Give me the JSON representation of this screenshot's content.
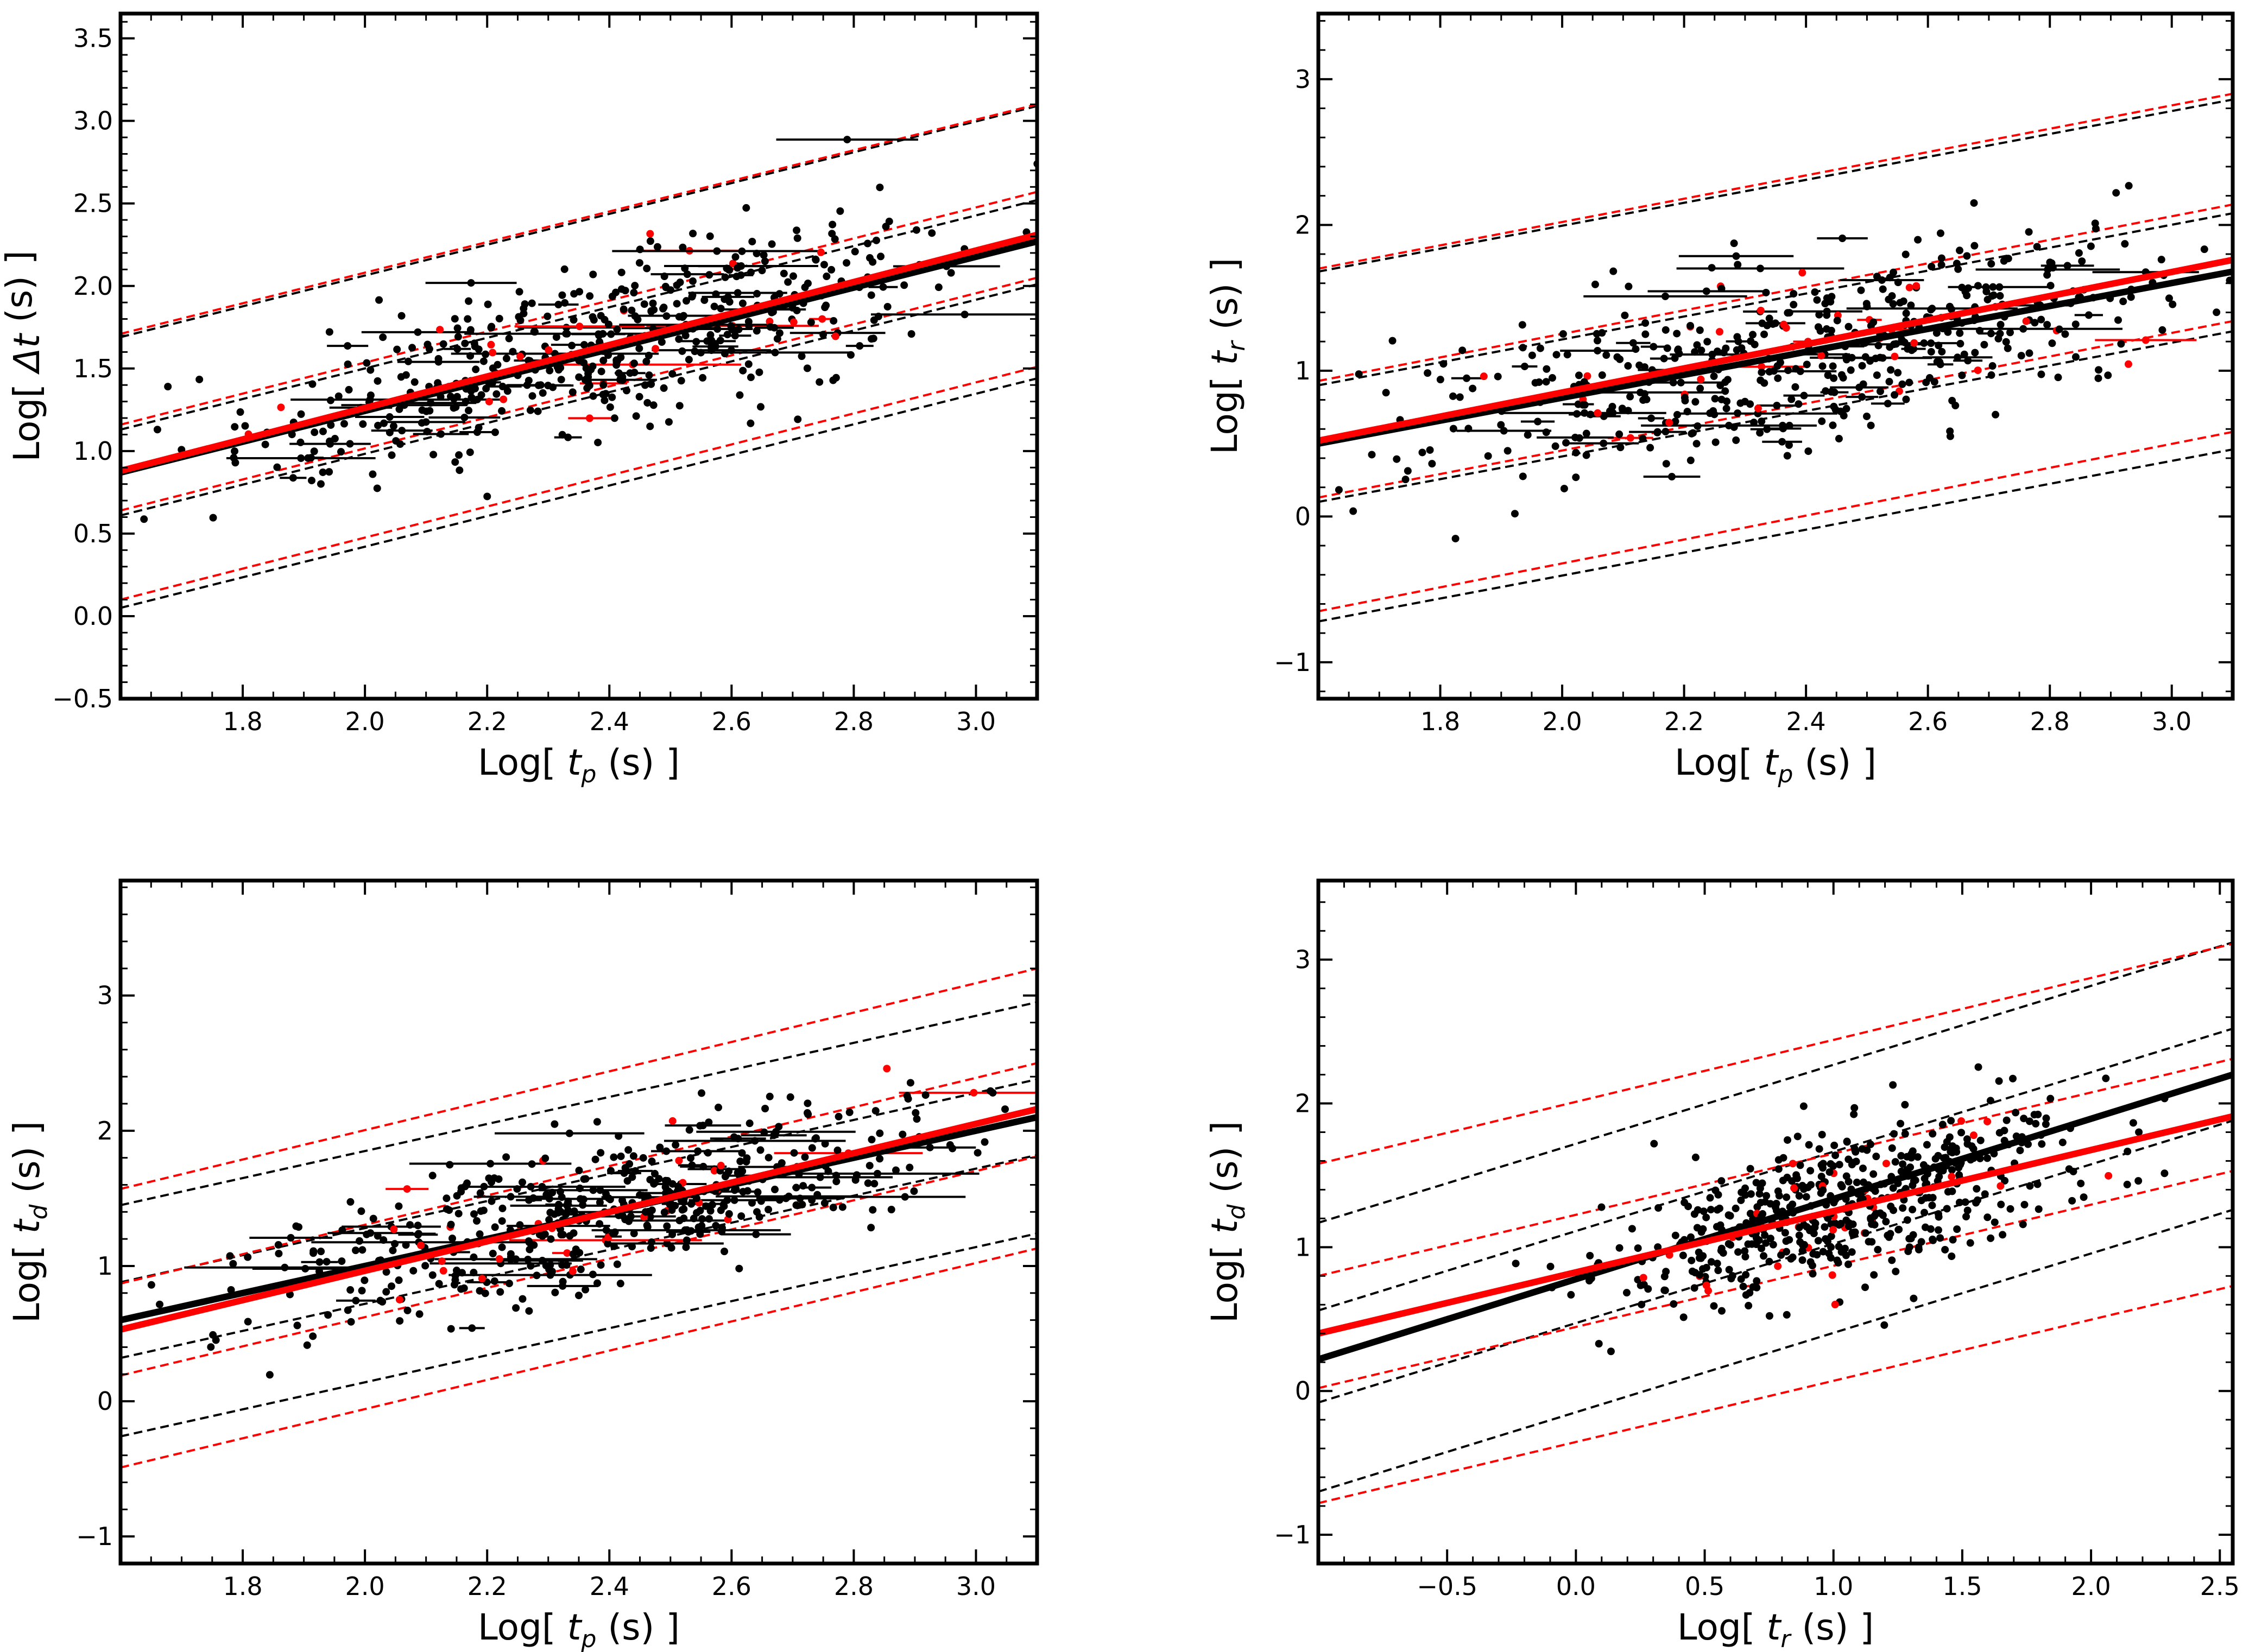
{
  "colors": {
    "black": "#000000",
    "red": "#ff0000",
    "background": "#ffffff"
  },
  "chart_data": [
    {
      "type": "scatter",
      "id": "p1",
      "xlabel": "Log[ t_p (s) ]",
      "ylabel": "Log[ Δt (s) ]",
      "x_prefix": "Log[ ",
      "x_var": "t",
      "x_sub": "p",
      "x_suffix": " (s) ]",
      "y_prefix": "Log[ ",
      "y_var": "Δt",
      "y_sub": "",
      "y_suffix": " (s) ]",
      "xlim": [
        1.6,
        3.1
      ],
      "ylim": [
        -0.5,
        3.65
      ],
      "xticks": [
        1.8,
        2.0,
        2.2,
        2.4,
        2.6,
        2.8,
        3.0
      ],
      "xtick_labels": [
        "1.8",
        "2.0",
        "2.2",
        "2.4",
        "2.6",
        "2.8",
        "3.0"
      ],
      "yticks": [
        -0.5,
        0.0,
        0.5,
        1.0,
        1.5,
        2.0,
        2.5,
        3.0,
        3.5
      ],
      "ytick_labels": [
        "−0.5",
        "0.0",
        "0.5",
        "1.0",
        "1.5",
        "2.0",
        "2.5",
        "3.0",
        "3.5"
      ],
      "xminor": 0.05,
      "yminor": 0.1,
      "scatter_center": [
        2.4,
        1.65
      ],
      "scatter_spread": [
        0.3,
        0.35
      ],
      "fit_slope": 0.94,
      "n_points": 520,
      "n_xerr": 70,
      "seed": 11,
      "lines": [
        {
          "color": "black",
          "width": 12,
          "dashed": false,
          "p1": [
            1.6,
            0.87
          ],
          "p2": [
            3.1,
            2.27
          ]
        },
        {
          "color": "red",
          "width": 12,
          "dashed": false,
          "p1": [
            1.6,
            0.88
          ],
          "p2": [
            3.1,
            2.31
          ]
        },
        {
          "color": "black",
          "width": 4,
          "dashed": true,
          "p1": [
            1.6,
            1.69
          ],
          "p2": [
            3.1,
            3.09
          ]
        },
        {
          "color": "red",
          "width": 4,
          "dashed": true,
          "p1": [
            1.6,
            1.71
          ],
          "p2": [
            3.1,
            3.1
          ]
        },
        {
          "color": "black",
          "width": 4,
          "dashed": true,
          "p1": [
            1.6,
            1.13
          ],
          "p2": [
            3.1,
            2.52
          ]
        },
        {
          "color": "red",
          "width": 4,
          "dashed": true,
          "p1": [
            1.6,
            1.16
          ],
          "p2": [
            3.1,
            2.57
          ]
        },
        {
          "color": "black",
          "width": 4,
          "dashed": true,
          "p1": [
            1.6,
            0.61
          ],
          "p2": [
            3.1,
            2.01
          ]
        },
        {
          "color": "red",
          "width": 4,
          "dashed": true,
          "p1": [
            1.6,
            0.64
          ],
          "p2": [
            3.1,
            2.05
          ]
        },
        {
          "color": "black",
          "width": 4,
          "dashed": true,
          "p1": [
            1.6,
            0.05
          ],
          "p2": [
            3.1,
            1.44
          ]
        },
        {
          "color": "red",
          "width": 4,
          "dashed": true,
          "p1": [
            1.6,
            0.1
          ],
          "p2": [
            3.1,
            1.51
          ]
        }
      ]
    },
    {
      "type": "scatter",
      "id": "p2",
      "xlabel": "Log[ t_p (s) ]",
      "ylabel": "Log[ t_r (s) ]",
      "x_prefix": "Log[ ",
      "x_var": "t",
      "x_sub": "p",
      "x_suffix": " (s) ]",
      "y_prefix": "Log[ ",
      "y_var": "t",
      "y_sub": "r",
      "y_suffix": " (s) ]",
      "xlim": [
        1.6,
        3.1
      ],
      "ylim": [
        -1.25,
        3.45
      ],
      "xticks": [
        1.8,
        2.0,
        2.2,
        2.4,
        2.6,
        2.8,
        3.0
      ],
      "xtick_labels": [
        "1.8",
        "2.0",
        "2.2",
        "2.4",
        "2.6",
        "2.8",
        "3.0"
      ],
      "yticks": [
        -1,
        0,
        1,
        2,
        3
      ],
      "ytick_labels": [
        "−1",
        "0",
        "1",
        "2",
        "3"
      ],
      "xminor": 0.05,
      "yminor": 0.2,
      "scatter_center": [
        2.4,
        1.1
      ],
      "scatter_spread": [
        0.3,
        0.45
      ],
      "fit_slope": 0.8,
      "n_points": 520,
      "n_xerr": 70,
      "seed": 23,
      "lines": [
        {
          "color": "black",
          "width": 12,
          "dashed": false,
          "p1": [
            1.6,
            0.5
          ],
          "p2": [
            3.1,
            1.68
          ]
        },
        {
          "color": "red",
          "width": 12,
          "dashed": false,
          "p1": [
            1.6,
            0.52
          ],
          "p2": [
            3.1,
            1.76
          ]
        },
        {
          "color": "black",
          "width": 4,
          "dashed": true,
          "p1": [
            1.6,
            1.68
          ],
          "p2": [
            3.1,
            2.86
          ]
        },
        {
          "color": "red",
          "width": 4,
          "dashed": true,
          "p1": [
            1.6,
            1.7
          ],
          "p2": [
            3.1,
            2.9
          ]
        },
        {
          "color": "black",
          "width": 4,
          "dashed": true,
          "p1": [
            1.6,
            0.9
          ],
          "p2": [
            3.1,
            2.08
          ]
        },
        {
          "color": "red",
          "width": 4,
          "dashed": true,
          "p1": [
            1.6,
            0.93
          ],
          "p2": [
            3.1,
            2.14
          ]
        },
        {
          "color": "black",
          "width": 4,
          "dashed": true,
          "p1": [
            1.6,
            0.1
          ],
          "p2": [
            3.1,
            1.27
          ]
        },
        {
          "color": "red",
          "width": 4,
          "dashed": true,
          "p1": [
            1.6,
            0.13
          ],
          "p2": [
            3.1,
            1.34
          ]
        },
        {
          "color": "black",
          "width": 4,
          "dashed": true,
          "p1": [
            1.6,
            -0.72
          ],
          "p2": [
            3.1,
            0.46
          ]
        },
        {
          "color": "red",
          "width": 4,
          "dashed": true,
          "p1": [
            1.6,
            -0.65
          ],
          "p2": [
            3.1,
            0.58
          ]
        }
      ]
    },
    {
      "type": "scatter",
      "id": "p3",
      "xlabel": "Log[ t_p (s) ]",
      "ylabel": "Log[ t_d (s) ]",
      "x_prefix": "Log[ ",
      "x_var": "t",
      "x_sub": "p",
      "x_suffix": " (s) ]",
      "y_prefix": "Log[ ",
      "y_var": "t",
      "y_sub": "d",
      "y_suffix": " (s) ]",
      "xlim": [
        1.6,
        3.1
      ],
      "ylim": [
        -1.2,
        3.85
      ],
      "xticks": [
        1.8,
        2.0,
        2.2,
        2.4,
        2.6,
        2.8,
        3.0
      ],
      "xtick_labels": [
        "1.8",
        "2.0",
        "2.2",
        "2.4",
        "2.6",
        "2.8",
        "3.0"
      ],
      "yticks": [
        -1,
        0,
        1,
        2,
        3
      ],
      "ytick_labels": [
        "−1",
        "0",
        "1",
        "2",
        "3"
      ],
      "xminor": 0.05,
      "yminor": 0.2,
      "scatter_center": [
        2.4,
        1.4
      ],
      "scatter_spread": [
        0.3,
        0.38
      ],
      "fit_slope": 1.0,
      "n_points": 520,
      "n_xerr": 70,
      "seed": 37,
      "lines": [
        {
          "color": "black",
          "width": 12,
          "dashed": false,
          "p1": [
            1.6,
            0.6
          ],
          "p2": [
            3.1,
            2.1
          ]
        },
        {
          "color": "red",
          "width": 12,
          "dashed": false,
          "p1": [
            1.6,
            0.53
          ],
          "p2": [
            3.1,
            2.16
          ]
        },
        {
          "color": "black",
          "width": 4,
          "dashed": true,
          "p1": [
            1.6,
            1.45
          ],
          "p2": [
            3.1,
            2.95
          ]
        },
        {
          "color": "red",
          "width": 4,
          "dashed": true,
          "p1": [
            1.6,
            1.57
          ],
          "p2": [
            3.1,
            3.2
          ]
        },
        {
          "color": "black",
          "width": 4,
          "dashed": true,
          "p1": [
            1.6,
            0.88
          ],
          "p2": [
            3.1,
            2.38
          ]
        },
        {
          "color": "red",
          "width": 4,
          "dashed": true,
          "p1": [
            1.6,
            0.87
          ],
          "p2": [
            3.1,
            2.5
          ]
        },
        {
          "color": "black",
          "width": 4,
          "dashed": true,
          "p1": [
            1.6,
            0.32
          ],
          "p2": [
            3.1,
            1.82
          ]
        },
        {
          "color": "red",
          "width": 4,
          "dashed": true,
          "p1": [
            1.6,
            0.19
          ],
          "p2": [
            3.1,
            1.81
          ]
        },
        {
          "color": "black",
          "width": 4,
          "dashed": true,
          "p1": [
            1.6,
            -0.26
          ],
          "p2": [
            3.1,
            1.24
          ]
        },
        {
          "color": "red",
          "width": 4,
          "dashed": true,
          "p1": [
            1.6,
            -0.49
          ],
          "p2": [
            3.1,
            1.13
          ]
        }
      ]
    },
    {
      "type": "scatter",
      "id": "p4",
      "xlabel": "Log[ t_r (s) ]",
      "ylabel": "Log[ t_d (s) ]",
      "x_prefix": "Log[ ",
      "x_var": "t",
      "x_sub": "r",
      "x_suffix": " (s) ]",
      "y_prefix": "Log[ ",
      "y_var": "t",
      "y_sub": "d",
      "y_suffix": " (s) ]",
      "xlim": [
        -1.0,
        2.55
      ],
      "ylim": [
        -1.2,
        3.55
      ],
      "xticks": [
        -0.5,
        0.0,
        0.5,
        1.0,
        1.5,
        2.0,
        2.5
      ],
      "xtick_labels": [
        "−0.5",
        "0.0",
        "0.5",
        "1.0",
        "1.5",
        "2.0",
        "2.5"
      ],
      "yticks": [
        -1,
        0,
        1,
        2,
        3
      ],
      "ytick_labels": [
        "−1",
        "0",
        "1",
        "2",
        "3"
      ],
      "xminor": 0.1,
      "yminor": 0.2,
      "scatter_center": [
        1.05,
        1.3
      ],
      "scatter_spread": [
        0.45,
        0.38
      ],
      "fit_slope": 0.55,
      "n_points": 560,
      "n_xerr": 0,
      "seed": 53,
      "lines": [
        {
          "color": "black",
          "width": 12,
          "dashed": false,
          "p1": [
            -1.0,
            0.22
          ],
          "p2": [
            2.55,
            2.2
          ]
        },
        {
          "color": "red",
          "width": 12,
          "dashed": false,
          "p1": [
            -1.0,
            0.4
          ],
          "p2": [
            2.55,
            1.91
          ]
        },
        {
          "color": "black",
          "width": 4,
          "dashed": true,
          "p1": [
            -1.0,
            1.17
          ],
          "p2": [
            2.55,
            3.12
          ]
        },
        {
          "color": "red",
          "width": 4,
          "dashed": true,
          "p1": [
            -1.0,
            1.58
          ],
          "p2": [
            2.55,
            3.11
          ]
        },
        {
          "color": "black",
          "width": 4,
          "dashed": true,
          "p1": [
            -1.0,
            0.56
          ],
          "p2": [
            2.55,
            2.52
          ]
        },
        {
          "color": "red",
          "width": 4,
          "dashed": true,
          "p1": [
            -1.0,
            0.8
          ],
          "p2": [
            2.55,
            2.31
          ]
        },
        {
          "color": "black",
          "width": 4,
          "dashed": true,
          "p1": [
            -1.0,
            -0.08
          ],
          "p2": [
            2.55,
            1.88
          ]
        },
        {
          "color": "red",
          "width": 4,
          "dashed": true,
          "p1": [
            -1.0,
            0.02
          ],
          "p2": [
            2.55,
            1.53
          ]
        },
        {
          "color": "black",
          "width": 4,
          "dashed": true,
          "p1": [
            -1.0,
            -0.7
          ],
          "p2": [
            2.55,
            1.26
          ]
        },
        {
          "color": "red",
          "width": 4,
          "dashed": true,
          "p1": [
            -1.0,
            -0.78
          ],
          "p2": [
            2.55,
            0.73
          ]
        }
      ]
    }
  ]
}
